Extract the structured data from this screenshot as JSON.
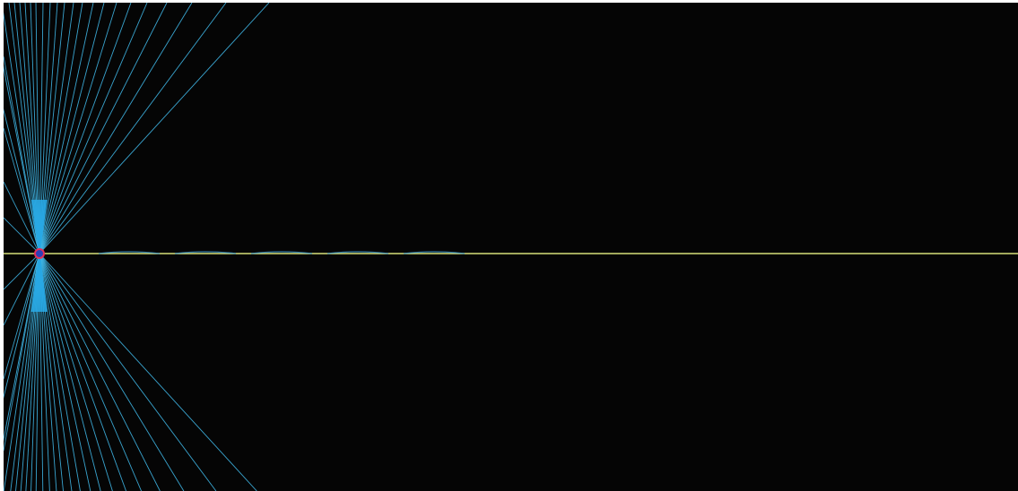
{
  "scene": {
    "background_color": "#050505",
    "ray_color": "#3fb6e6",
    "ray_core_color": "#2aa9e6",
    "axis_color": "#d7e07a",
    "ripple_color": "#3d9ad0",
    "source_marker_fill": "#2f3fb8",
    "source_marker_stroke": "#e4305a",
    "ray_count_per_side": 28,
    "icons": [
      "light-source-icon"
    ]
  }
}
